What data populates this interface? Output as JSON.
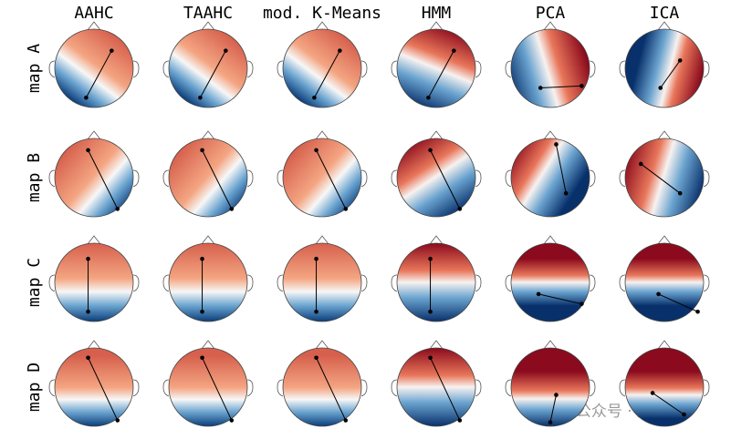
{
  "columns": [
    "AAHC",
    "TAAHC",
    "mod. K-Means",
    "HMM",
    "PCA",
    "ICA"
  ],
  "rows": [
    "map A",
    "map B",
    "map C",
    "map D"
  ],
  "watermark": "公众号 · 脑之说"
}
